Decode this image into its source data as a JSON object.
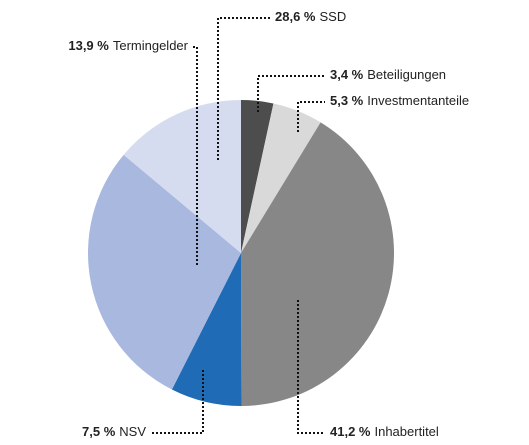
{
  "chart_data": {
    "type": "pie",
    "categories": [
      "Beteiligungen",
      "Investmentanteile",
      "Inhabertitel",
      "NSV",
      "SSD",
      "Termingelder"
    ],
    "values": [
      3.4,
      5.3,
      41.2,
      7.5,
      28.6,
      13.9
    ],
    "value_labels": [
      "3,4 %",
      "5,3 %",
      "41,2 %",
      "7,5 %",
      "28,6 %",
      "13,9 %"
    ],
    "colors": [
      "#4d4d4d",
      "#d9d9d9",
      "#878787",
      "#1f6bb5",
      "#a9b8df",
      "#d6dcef"
    ]
  }
}
